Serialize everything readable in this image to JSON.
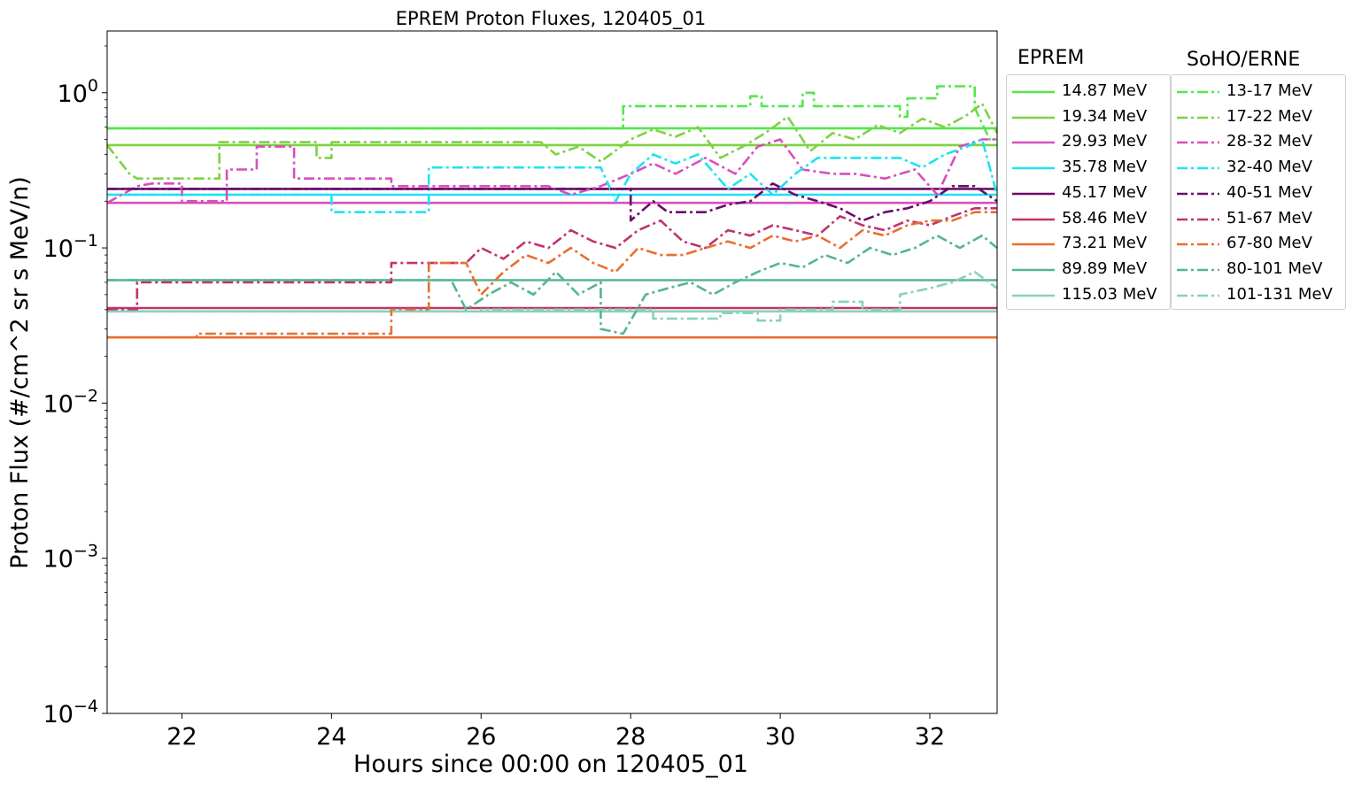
{
  "chart_data": {
    "type": "line",
    "title": "EPREM Proton Fluxes, 120405_01",
    "xlabel": "Hours since 00:00 on 120405_01",
    "ylabel": "Proton Flux (#/cm^2 sr s MeV/n)",
    "xlim": [
      21.0,
      32.9
    ],
    "ylim": [
      0.0001,
      2.5
    ],
    "yscale": "log",
    "x_ticks": [
      22,
      24,
      26,
      28,
      30,
      32
    ],
    "y_tick_exponents": [
      0,
      -1,
      -2,
      -3,
      -4
    ],
    "y_tick_base": "10",
    "legends": [
      {
        "title": "EPREM",
        "style": "solid",
        "placement": "outside right, upper",
        "entries": [
          "14.87 MeV",
          "19.34 MeV",
          "29.93 MeV",
          "35.78 MeV",
          "45.17 MeV",
          "58.46 MeV",
          "73.21 MeV",
          "89.89 MeV",
          "115.03 MeV"
        ]
      },
      {
        "title": "SoHO/ERNE",
        "style": "dashdot",
        "placement": "outside right, upper",
        "entries": [
          "13-17 MeV",
          "17-22 MeV",
          "28-32 MeV",
          "32-40 MeV",
          "40-51 MeV",
          "51-67 MeV",
          "67-80 MeV",
          "80-101 MeV",
          "101-131 MeV"
        ]
      }
    ],
    "colors": [
      "#55e64a",
      "#7fd144",
      "#d94fbb",
      "#1fe3ef",
      "#6b0d6b",
      "#c0336e",
      "#e96e2e",
      "#55b591",
      "#88d2b8"
    ],
    "series": [
      {
        "name": "14.87 MeV",
        "group": "EPREM",
        "style": "solid",
        "x": [
          21.0,
          32.9
        ],
        "y": [
          0.59,
          0.59
        ]
      },
      {
        "name": "19.34 MeV",
        "group": "EPREM",
        "style": "solid",
        "x": [
          21.0,
          32.9
        ],
        "y": [
          0.46,
          0.46
        ]
      },
      {
        "name": "29.93 MeV",
        "group": "EPREM",
        "style": "solid",
        "x": [
          21.0,
          32.9
        ],
        "y": [
          0.195,
          0.195
        ]
      },
      {
        "name": "35.78 MeV",
        "group": "EPREM",
        "style": "solid",
        "x": [
          21.0,
          32.9
        ],
        "y": [
          0.22,
          0.22
        ]
      },
      {
        "name": "45.17 MeV",
        "group": "EPREM",
        "style": "solid",
        "x": [
          21.0,
          32.9
        ],
        "y": [
          0.24,
          0.24
        ]
      },
      {
        "name": "58.46 MeV",
        "group": "EPREM",
        "style": "solid",
        "x": [
          21.0,
          32.9
        ],
        "y": [
          0.041,
          0.041
        ]
      },
      {
        "name": "73.21 MeV",
        "group": "EPREM",
        "style": "solid",
        "x": [
          21.0,
          32.9
        ],
        "y": [
          0.0265,
          0.0265
        ]
      },
      {
        "name": "89.89 MeV",
        "group": "EPREM",
        "style": "solid",
        "x": [
          21.0,
          32.9
        ],
        "y": [
          0.062,
          0.062
        ]
      },
      {
        "name": "115.03 MeV",
        "group": "EPREM",
        "style": "solid",
        "x": [
          21.0,
          32.9
        ],
        "y": [
          0.039,
          0.039
        ]
      },
      {
        "name": "13-17 MeV",
        "group": "SoHO/ERNE",
        "style": "dashdot",
        "x": [
          21.0,
          27.9,
          27.9,
          29.6,
          29.6,
          29.75,
          29.75,
          30.3,
          30.3,
          30.45,
          30.45,
          31.6,
          31.6,
          31.7,
          31.7,
          32.1,
          32.1,
          32.6,
          32.6,
          32.8,
          32.9
        ],
        "y": [
          0.59,
          0.59,
          0.82,
          0.82,
          0.95,
          0.95,
          0.82,
          0.82,
          1.0,
          1.0,
          0.82,
          0.82,
          0.7,
          0.7,
          0.92,
          0.92,
          1.1,
          1.1,
          0.8,
          0.5,
          0.5
        ]
      },
      {
        "name": "17-22 MeV",
        "group": "SoHO/ERNE",
        "style": "dashdot",
        "x": [
          21.0,
          21.3,
          21.4,
          22.5,
          22.5,
          23.8,
          23.8,
          24.0,
          24.0,
          26.8,
          27.0,
          27.3,
          27.6,
          28.0,
          28.3,
          28.6,
          28.9,
          29.2,
          29.5,
          29.8,
          30.1,
          30.4,
          30.7,
          31.0,
          31.3,
          31.6,
          31.9,
          32.2,
          32.5,
          32.7,
          32.9
        ],
        "y": [
          0.46,
          0.3,
          0.28,
          0.28,
          0.48,
          0.48,
          0.38,
          0.38,
          0.48,
          0.48,
          0.4,
          0.45,
          0.36,
          0.5,
          0.58,
          0.52,
          0.6,
          0.38,
          0.45,
          0.55,
          0.7,
          0.42,
          0.55,
          0.5,
          0.62,
          0.55,
          0.68,
          0.6,
          0.72,
          0.85,
          0.55
        ]
      },
      {
        "name": "28-32 MeV",
        "group": "SoHO/ERNE",
        "style": "dashdot",
        "x": [
          21.0,
          21.4,
          21.6,
          22.0,
          22.0,
          22.6,
          22.6,
          23.0,
          23.0,
          23.5,
          23.5,
          24.8,
          24.8,
          26.9,
          27.2,
          27.6,
          28.0,
          28.3,
          28.6,
          29.0,
          29.4,
          29.7,
          30.0,
          30.3,
          30.7,
          31.0,
          31.4,
          31.8,
          32.1,
          32.4,
          32.7,
          32.9
        ],
        "y": [
          0.195,
          0.25,
          0.26,
          0.26,
          0.2,
          0.2,
          0.32,
          0.32,
          0.45,
          0.45,
          0.28,
          0.28,
          0.25,
          0.25,
          0.22,
          0.25,
          0.3,
          0.35,
          0.3,
          0.38,
          0.3,
          0.45,
          0.5,
          0.32,
          0.3,
          0.3,
          0.28,
          0.32,
          0.22,
          0.45,
          0.5,
          0.5
        ]
      },
      {
        "name": "32-40 MeV",
        "group": "SoHO/ERNE",
        "style": "dashdot",
        "x": [
          21.0,
          24.0,
          24.0,
          25.3,
          25.3,
          27.6,
          27.8,
          28.0,
          28.3,
          28.6,
          28.9,
          29.3,
          29.6,
          29.9,
          30.2,
          30.5,
          30.8,
          31.2,
          31.6,
          31.9,
          32.2,
          32.5,
          32.7,
          32.9
        ],
        "y": [
          0.22,
          0.22,
          0.17,
          0.17,
          0.33,
          0.33,
          0.2,
          0.3,
          0.4,
          0.35,
          0.4,
          0.24,
          0.3,
          0.22,
          0.3,
          0.38,
          0.38,
          0.38,
          0.38,
          0.33,
          0.4,
          0.45,
          0.5,
          0.22
        ]
      },
      {
        "name": "40-51 MeV",
        "group": "SoHO/ERNE",
        "style": "dashdot",
        "x": [
          21.0,
          28.0,
          28.0,
          28.3,
          28.5,
          28.8,
          29.0,
          29.3,
          29.6,
          29.9,
          30.2,
          30.5,
          30.8,
          31.1,
          31.4,
          31.7,
          32.0,
          32.3,
          32.6,
          32.9
        ],
        "y": [
          0.24,
          0.24,
          0.15,
          0.2,
          0.17,
          0.17,
          0.17,
          0.19,
          0.2,
          0.26,
          0.22,
          0.2,
          0.18,
          0.15,
          0.17,
          0.18,
          0.2,
          0.25,
          0.25,
          0.2
        ]
      },
      {
        "name": "51-67 MeV",
        "group": "SoHO/ERNE",
        "style": "dashdot",
        "x": [
          21.0,
          21.4,
          21.4,
          24.8,
          24.8,
          25.8,
          26.0,
          26.3,
          26.6,
          26.9,
          27.2,
          27.5,
          27.8,
          28.1,
          28.4,
          28.7,
          29.0,
          29.3,
          29.6,
          29.9,
          30.2,
          30.5,
          30.8,
          31.1,
          31.4,
          31.7,
          32.0,
          32.3,
          32.6,
          32.9
        ],
        "y": [
          0.04,
          0.04,
          0.06,
          0.06,
          0.08,
          0.08,
          0.1,
          0.085,
          0.11,
          0.1,
          0.13,
          0.11,
          0.1,
          0.13,
          0.15,
          0.11,
          0.1,
          0.13,
          0.12,
          0.14,
          0.13,
          0.12,
          0.16,
          0.14,
          0.13,
          0.15,
          0.14,
          0.16,
          0.18,
          0.18
        ]
      },
      {
        "name": "67-80 MeV",
        "group": "SoHO/ERNE",
        "style": "dashdot",
        "x": [
          21.0,
          22.2,
          22.2,
          24.8,
          24.8,
          25.3,
          25.3,
          25.8,
          26.0,
          26.3,
          26.6,
          26.9,
          27.2,
          27.5,
          27.8,
          28.1,
          28.4,
          28.7,
          29.0,
          29.3,
          29.6,
          29.9,
          30.2,
          30.5,
          30.8,
          31.1,
          31.4,
          31.7,
          32.0,
          32.3,
          32.6,
          32.9
        ],
        "y": [
          0.0265,
          0.0265,
          0.028,
          0.028,
          0.04,
          0.04,
          0.08,
          0.08,
          0.05,
          0.07,
          0.09,
          0.08,
          0.1,
          0.08,
          0.07,
          0.1,
          0.09,
          0.09,
          0.1,
          0.11,
          0.1,
          0.12,
          0.11,
          0.12,
          0.1,
          0.13,
          0.12,
          0.14,
          0.15,
          0.15,
          0.17,
          0.17
        ]
      },
      {
        "name": "80-101 MeV",
        "group": "SoHO/ERNE",
        "style": "dashdot",
        "x": [
          21.0,
          25.6,
          25.8,
          26.1,
          26.4,
          26.7,
          27.0,
          27.3,
          27.6,
          27.6,
          27.9,
          28.2,
          28.5,
          28.8,
          29.1,
          29.4,
          29.7,
          30.0,
          30.3,
          30.6,
          30.9,
          31.2,
          31.5,
          31.8,
          32.1,
          32.4,
          32.7,
          32.9
        ],
        "y": [
          0.062,
          0.062,
          0.04,
          0.05,
          0.06,
          0.05,
          0.07,
          0.05,
          0.06,
          0.03,
          0.028,
          0.05,
          0.055,
          0.06,
          0.05,
          0.06,
          0.07,
          0.08,
          0.075,
          0.09,
          0.08,
          0.1,
          0.09,
          0.1,
          0.12,
          0.1,
          0.12,
          0.1
        ]
      },
      {
        "name": "101-131 MeV",
        "group": "SoHO/ERNE",
        "style": "dashdot",
        "x": [
          21.0,
          26.0,
          26.0,
          28.3,
          28.3,
          29.2,
          29.2,
          29.7,
          29.7,
          30.0,
          30.0,
          30.7,
          30.7,
          31.1,
          31.1,
          31.6,
          31.6,
          32.0,
          32.3,
          32.6,
          32.9
        ],
        "y": [
          0.039,
          0.039,
          0.04,
          0.04,
          0.035,
          0.035,
          0.038,
          0.038,
          0.034,
          0.034,
          0.04,
          0.04,
          0.045,
          0.045,
          0.04,
          0.04,
          0.05,
          0.055,
          0.06,
          0.07,
          0.055
        ]
      }
    ]
  }
}
